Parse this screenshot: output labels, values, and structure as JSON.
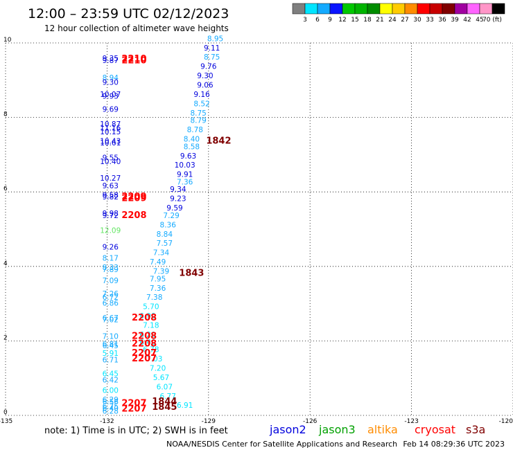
{
  "header": {
    "title": "12:00 – 23:59 UTC 02/12/2023",
    "subtitle": "12 hour collection of altimeter wave heights"
  },
  "colorbar": {
    "labels": [
      "3",
      "6",
      "9",
      "12",
      "15",
      "18",
      "21",
      "24",
      "27",
      "30",
      "33",
      "36",
      "39",
      "42",
      "45",
      "70 (ft)"
    ],
    "colors": [
      "#7f7f7f",
      "#00e5ff",
      "#14aaff",
      "#0a14ff",
      "#00c800",
      "#00b400",
      "#008c00",
      "#ffff00",
      "#ffcc00",
      "#ff8c00",
      "#ff0000",
      "#c80000",
      "#800000",
      "#a000a0",
      "#ff64ff",
      "#ff96c8",
      "#000000"
    ]
  },
  "footer": {
    "note": "note:  1) Time is in UTC;  2) SWH is in feet",
    "credit": "NOAA/NESDIS Center for Satellite Applications and Research",
    "timestamp": "Feb 14 08:29:36 UTC 2023",
    "satellites": [
      {
        "name": "jason2",
        "color": "#0000dd"
      },
      {
        "name": "jason3",
        "color": "#00a000"
      },
      {
        "name": "altika",
        "color": "#ff8c00"
      },
      {
        "name": "cryosat",
        "color": "#ff0000"
      },
      {
        "name": "s3a",
        "color": "#800000"
      }
    ]
  },
  "chart_data": {
    "type": "scatter",
    "title": "12:00 – 23:59 UTC 02/12/2023",
    "subtitle": "12 hour collection of altimeter wave heights",
    "xlim": [
      -135,
      -120
    ],
    "ylim": [
      0,
      10
    ],
    "x_ticks": [
      "-135",
      "-132",
      "-129",
      "-126",
      "-123",
      "-120"
    ],
    "y_ticks": [
      "0",
      "2",
      "4",
      "6",
      "8",
      "10"
    ],
    "grid": true,
    "grid_style": "dotted",
    "points": [
      {
        "x": -131.9,
        "y": 9.52,
        "t": "9.35",
        "c": "#0000dd"
      },
      {
        "x": -131.9,
        "y": 9.46,
        "t": "9.87",
        "c": "#0000dd"
      },
      {
        "x": -131.9,
        "y": 9.0,
        "t": "8.94",
        "c": "#14aaff"
      },
      {
        "x": -131.9,
        "y": 8.88,
        "t": "9.30",
        "c": "#0000dd"
      },
      {
        "x": -131.9,
        "y": 8.55,
        "t": "10.07",
        "c": "#0000dd"
      },
      {
        "x": -131.9,
        "y": 8.5,
        "t": "9.93",
        "c": "#0000dd"
      },
      {
        "x": -131.9,
        "y": 8.15,
        "t": "9.69",
        "c": "#0000dd"
      },
      {
        "x": -131.9,
        "y": 7.75,
        "t": "10.87",
        "c": "#0000dd"
      },
      {
        "x": -131.9,
        "y": 7.65,
        "t": "11.16",
        "c": "#0000dd"
      },
      {
        "x": -131.9,
        "y": 7.55,
        "t": "10.15",
        "c": "#0000dd"
      },
      {
        "x": -131.9,
        "y": 7.3,
        "t": "10.43",
        "c": "#0000dd"
      },
      {
        "x": -131.9,
        "y": 7.25,
        "t": "10.61",
        "c": "#0000dd"
      },
      {
        "x": -131.9,
        "y": 6.85,
        "t": "9.55",
        "c": "#0000dd"
      },
      {
        "x": -131.9,
        "y": 6.75,
        "t": "10.40",
        "c": "#0000dd"
      },
      {
        "x": -131.9,
        "y": 6.3,
        "t": "10.27",
        "c": "#0000dd"
      },
      {
        "x": -131.9,
        "y": 6.1,
        "t": "9.63",
        "c": "#0000dd"
      },
      {
        "x": -131.9,
        "y": 5.85,
        "t": "9.58",
        "c": "#0000dd"
      },
      {
        "x": -131.9,
        "y": 5.8,
        "t": "9.82",
        "c": "#0000dd"
      },
      {
        "x": -131.9,
        "y": 5.35,
        "t": "9.98",
        "c": "#0000dd"
      },
      {
        "x": -131.9,
        "y": 5.3,
        "t": "9.72",
        "c": "#0000dd"
      },
      {
        "x": -131.9,
        "y": 4.9,
        "t": "12.09",
        "c": "#64e664"
      },
      {
        "x": -131.9,
        "y": 4.45,
        "t": "9.26",
        "c": "#0000dd"
      },
      {
        "x": -131.9,
        "y": 4.15,
        "t": "8.17",
        "c": "#14aaff"
      },
      {
        "x": -131.9,
        "y": 3.9,
        "t": "8.33",
        "c": "#14aaff"
      },
      {
        "x": -131.9,
        "y": 3.85,
        "t": "7.89",
        "c": "#14aaff"
      },
      {
        "x": -131.9,
        "y": 3.55,
        "t": "7.09",
        "c": "#14aaff"
      },
      {
        "x": -131.9,
        "y": 3.2,
        "t": "7.26",
        "c": "#14aaff"
      },
      {
        "x": -131.9,
        "y": 3.1,
        "t": "6.72",
        "c": "#14aaff"
      },
      {
        "x": -131.9,
        "y": 2.95,
        "t": "6.86",
        "c": "#14aaff"
      },
      {
        "x": -131.9,
        "y": 2.55,
        "t": "6.67",
        "c": "#14aaff"
      },
      {
        "x": -131.9,
        "y": 2.5,
        "t": "7.02",
        "c": "#14aaff"
      },
      {
        "x": -131.9,
        "y": 2.05,
        "t": "7.10",
        "c": "#14aaff"
      },
      {
        "x": -131.9,
        "y": 1.85,
        "t": "6.81",
        "c": "#14aaff"
      },
      {
        "x": -131.9,
        "y": 1.8,
        "t": "6.45",
        "c": "#14aaff"
      },
      {
        "x": -131.9,
        "y": 1.6,
        "t": "5.91",
        "c": "#00e5ff"
      },
      {
        "x": -131.9,
        "y": 1.42,
        "t": "6.71",
        "c": "#14aaff"
      },
      {
        "x": -131.9,
        "y": 1.05,
        "t": "6.45",
        "c": "#00e5ff"
      },
      {
        "x": -131.9,
        "y": 0.88,
        "t": "6.42",
        "c": "#14aaff"
      },
      {
        "x": -131.9,
        "y": 0.6,
        "t": "6.00",
        "c": "#00e5ff"
      },
      {
        "x": -131.9,
        "y": 0.35,
        "t": "6.29",
        "c": "#14aaff"
      },
      {
        "x": -131.9,
        "y": 0.3,
        "t": "6.56",
        "c": "#14aaff"
      },
      {
        "x": -131.9,
        "y": 0.18,
        "t": "6.75",
        "c": "#14aaff"
      },
      {
        "x": -131.9,
        "y": 0.12,
        "t": "6.40",
        "c": "#14aaff"
      },
      {
        "x": -131.9,
        "y": 0.05,
        "t": "6.28",
        "c": "#14aaff"
      },
      {
        "x": -129.7,
        "y": 0.2,
        "t": "6.91",
        "c": "#00e5ff"
      },
      {
        "x": -130.2,
        "y": 0.45,
        "t": "6.77",
        "c": "#00e5ff"
      },
      {
        "x": -130.3,
        "y": 0.7,
        "t": "6.07",
        "c": "#00e5ff"
      },
      {
        "x": -130.4,
        "y": 0.95,
        "t": "5.67",
        "c": "#00e5ff"
      },
      {
        "x": -130.5,
        "y": 1.2,
        "t": "7.20",
        "c": "#00e5ff"
      },
      {
        "x": -130.6,
        "y": 1.45,
        "t": "7.03",
        "c": "#00e5ff"
      },
      {
        "x": -130.7,
        "y": 1.7,
        "t": "6.78",
        "c": "#00e5ff"
      },
      {
        "x": -130.8,
        "y": 1.9,
        "t": "6.40",
        "c": "#00e5ff"
      },
      {
        "x": -130.8,
        "y": 2.1,
        "t": "6.20",
        "c": "#00e5ff"
      },
      {
        "x": -130.7,
        "y": 2.35,
        "t": "7.18",
        "c": "#00e5ff"
      },
      {
        "x": -130.8,
        "y": 2.6,
        "t": "6.90",
        "c": "#00e5ff"
      },
      {
        "x": -130.7,
        "y": 2.85,
        "t": "5.70",
        "c": "#00e5ff"
      },
      {
        "x": -130.6,
        "y": 3.1,
        "t": "7.38",
        "c": "#14aaff"
      },
      {
        "x": -130.5,
        "y": 3.35,
        "t": "7.36",
        "c": "#14aaff"
      },
      {
        "x": -130.5,
        "y": 3.6,
        "t": "7.95",
        "c": "#14aaff"
      },
      {
        "x": -130.4,
        "y": 3.8,
        "t": "7.39",
        "c": "#14aaff"
      },
      {
        "x": -130.5,
        "y": 4.05,
        "t": "7.49",
        "c": "#14aaff"
      },
      {
        "x": -130.4,
        "y": 4.3,
        "t": "7.34",
        "c": "#14aaff"
      },
      {
        "x": -130.3,
        "y": 4.55,
        "t": "7.57",
        "c": "#14aaff"
      },
      {
        "x": -130.3,
        "y": 4.8,
        "t": "8.84",
        "c": "#14aaff"
      },
      {
        "x": -130.2,
        "y": 5.05,
        "t": "8.36",
        "c": "#14aaff"
      },
      {
        "x": -130.1,
        "y": 5.3,
        "t": "7.29",
        "c": "#14aaff"
      },
      {
        "x": -130.0,
        "y": 5.5,
        "t": "9.59",
        "c": "#0000dd"
      },
      {
        "x": -129.9,
        "y": 5.75,
        "t": "9.23",
        "c": "#0000dd"
      },
      {
        "x": -129.9,
        "y": 6.0,
        "t": "9.34",
        "c": "#0000dd"
      },
      {
        "x": -129.7,
        "y": 6.2,
        "t": "7.36",
        "c": "#14aaff"
      },
      {
        "x": -129.7,
        "y": 6.4,
        "t": "9.91",
        "c": "#0000dd"
      },
      {
        "x": -129.7,
        "y": 6.65,
        "t": "10.03",
        "c": "#0000dd"
      },
      {
        "x": -129.6,
        "y": 6.9,
        "t": "9.63",
        "c": "#0000dd"
      },
      {
        "x": -129.5,
        "y": 7.15,
        "t": "8.58",
        "c": "#14aaff"
      },
      {
        "x": -129.5,
        "y": 7.35,
        "t": "8.40",
        "c": "#14aaff"
      },
      {
        "x": -129.4,
        "y": 7.6,
        "t": "8.78",
        "c": "#14aaff"
      },
      {
        "x": -129.3,
        "y": 7.85,
        "t": "8.79",
        "c": "#14aaff"
      },
      {
        "x": -129.3,
        "y": 8.05,
        "t": "8.75",
        "c": "#14aaff"
      },
      {
        "x": -129.2,
        "y": 8.3,
        "t": "8.52",
        "c": "#14aaff"
      },
      {
        "x": -129.2,
        "y": 8.55,
        "t": "9.16",
        "c": "#0000dd"
      },
      {
        "x": -129.1,
        "y": 8.8,
        "t": "9.06",
        "c": "#0000dd"
      },
      {
        "x": -129.1,
        "y": 9.05,
        "t": "9.30",
        "c": "#0000dd"
      },
      {
        "x": -129.0,
        "y": 9.3,
        "t": "9.76",
        "c": "#0000dd"
      },
      {
        "x": -128.9,
        "y": 9.55,
        "t": "8.75",
        "c": "#14aaff"
      },
      {
        "x": -128.9,
        "y": 9.8,
        "t": "9.11",
        "c": "#0000dd"
      },
      {
        "x": -128.8,
        "y": 10.05,
        "t": "8.95",
        "c": "#14aaff"
      }
    ],
    "pass_labels": [
      {
        "x": -131.2,
        "y": 9.5,
        "t": "2210",
        "c": "#ff0000"
      },
      {
        "x": -131.2,
        "y": 9.45,
        "t": "2210",
        "c": "#ff0000"
      },
      {
        "x": -131.2,
        "y": 5.8,
        "t": "2209",
        "c": "#ff0000"
      },
      {
        "x": -131.2,
        "y": 5.75,
        "t": "2209",
        "c": "#ff0000"
      },
      {
        "x": -131.2,
        "y": 5.3,
        "t": "2208",
        "c": "#ff0000"
      },
      {
        "x": -130.9,
        "y": 2.55,
        "t": "2208",
        "c": "#ff0000"
      },
      {
        "x": -130.9,
        "y": 2.05,
        "t": "2208",
        "c": "#ff0000"
      },
      {
        "x": -130.9,
        "y": 1.85,
        "t": "2208",
        "c": "#ff0000"
      },
      {
        "x": -130.9,
        "y": 1.6,
        "t": "2207",
        "c": "#ff0000"
      },
      {
        "x": -130.9,
        "y": 1.45,
        "t": "2207",
        "c": "#ff0000"
      },
      {
        "x": -131.2,
        "y": 0.25,
        "t": "2207",
        "c": "#ff0000"
      },
      {
        "x": -131.2,
        "y": 0.1,
        "t": "2207",
        "c": "#ff0000"
      },
      {
        "x": -128.7,
        "y": 7.3,
        "t": "1842",
        "c": "#800000"
      },
      {
        "x": -129.5,
        "y": 3.75,
        "t": "1843",
        "c": "#800000"
      },
      {
        "x": -130.3,
        "y": 0.3,
        "t": "1844",
        "c": "#800000"
      },
      {
        "x": -130.3,
        "y": 0.15,
        "t": "1845",
        "c": "#800000"
      }
    ]
  }
}
